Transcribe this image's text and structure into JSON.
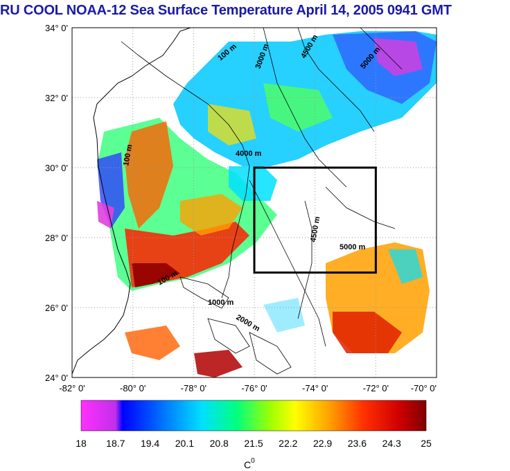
{
  "title": "RU COOL  NOAA-12 Sea Surface Temperature April 14, 2005 0941 GMT",
  "map": {
    "lon_min": -82,
    "lon_max": -70,
    "lat_min": 24,
    "lat_max": 34,
    "x_ticks": [
      "-82° 0'",
      "-80° 0'",
      "-78° 0'",
      "-76° 0'",
      "-74° 0'",
      "-72° 0'",
      "-70° 0'"
    ],
    "y_ticks": [
      "34° 0'",
      "32° 0'",
      "30° 0'",
      "28° 0'",
      "26° 0'",
      "24° 0'"
    ],
    "study_box": {
      "lon_min": -76,
      "lon_max": -72,
      "lat_min": 27,
      "lat_max": 30
    },
    "contour_labels": [
      "100 m",
      "3000 m",
      "4500 m",
      "5000 m",
      "4000 m",
      "1000 m",
      "2000 m"
    ]
  },
  "colorbar": {
    "tick_labels": [
      "18",
      "18.7",
      "19.4",
      "20.1",
      "20.8",
      "21.5",
      "22.2",
      "22.9",
      "23.6",
      "24.3",
      "25"
    ],
    "unit": "C",
    "unit_superscript": "0",
    "colors": [
      "#ff30ff",
      "#b030e0",
      "#0000ff",
      "#0060ff",
      "#00c0ff",
      "#00ffc0",
      "#40ff40",
      "#c0ff00",
      "#ffff00",
      "#ffc000",
      "#ff8000",
      "#ff3000",
      "#e00000",
      "#800000"
    ]
  }
}
